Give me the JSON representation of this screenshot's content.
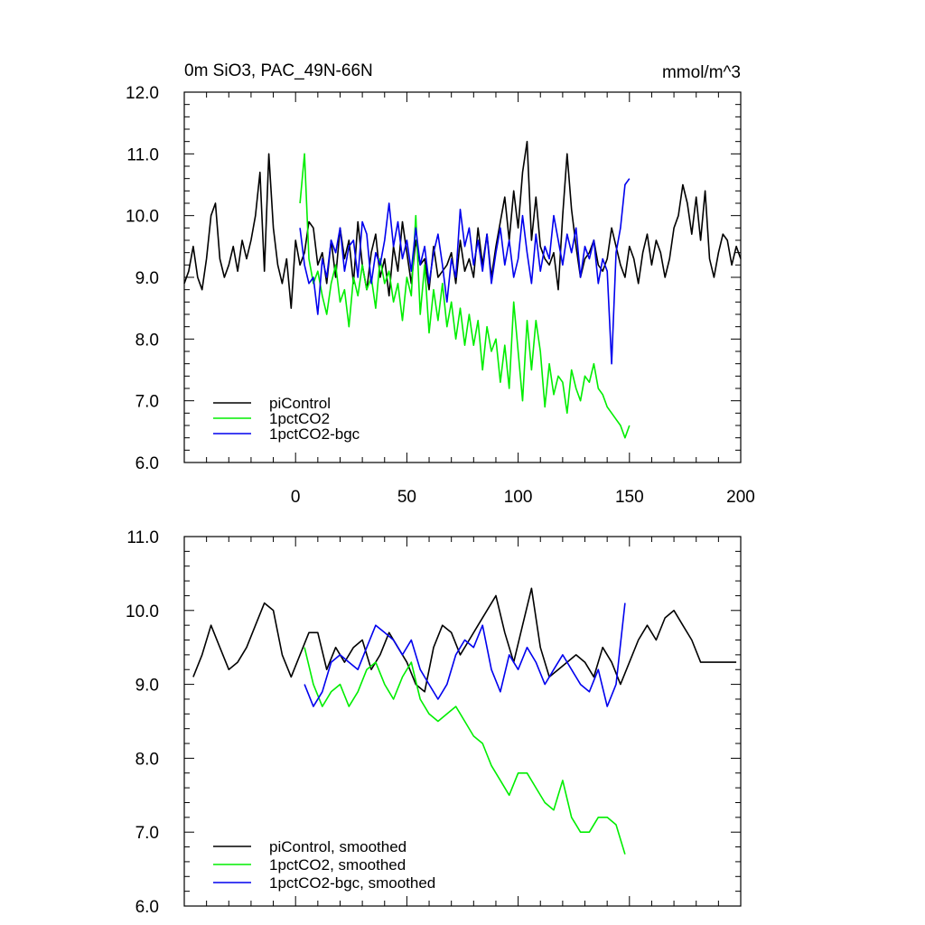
{
  "chart_data": [
    {
      "type": "line",
      "title": "0m SiO3, PAC_49N-66N",
      "units": "mmol/m^3",
      "xlim": [
        -50,
        200
      ],
      "ylim": [
        6.0,
        12.0
      ],
      "x_ticks": [
        0,
        50,
        100,
        150,
        200
      ],
      "x_tick_labels": [
        "0",
        "50",
        "100",
        "150",
        "200"
      ],
      "y_ticks": [
        6.0,
        7.0,
        8.0,
        9.0,
        10.0,
        11.0,
        12.0
      ],
      "y_tick_labels": [
        "6.0",
        "7.0",
        "8.0",
        "9.0",
        "10.0",
        "11.0",
        "12.0"
      ],
      "legend_position": "bottom-left",
      "series": [
        {
          "name": "piControl",
          "color": "#000000",
          "x": [
            -50,
            -48,
            -46,
            -44,
            -42,
            -40,
            -38,
            -36,
            -34,
            -32,
            -30,
            -28,
            -26,
            -24,
            -22,
            -20,
            -18,
            -16,
            -14,
            -12,
            -10,
            -8,
            -6,
            -4,
            -2,
            0,
            2,
            4,
            6,
            8,
            10,
            12,
            14,
            16,
            18,
            20,
            22,
            24,
            26,
            28,
            30,
            32,
            34,
            36,
            38,
            40,
            42,
            44,
            46,
            48,
            50,
            52,
            54,
            56,
            58,
            60,
            62,
            64,
            66,
            68,
            70,
            72,
            74,
            76,
            78,
            80,
            82,
            84,
            86,
            88,
            90,
            92,
            94,
            96,
            98,
            100,
            102,
            104,
            106,
            108,
            110,
            112,
            114,
            116,
            118,
            120,
            122,
            124,
            126,
            128,
            130,
            132,
            134,
            136,
            138,
            140,
            142,
            144,
            146,
            148,
            150,
            152,
            154,
            156,
            158,
            160,
            162,
            164,
            166,
            168,
            170,
            172,
            174,
            176,
            178,
            180,
            182,
            184,
            186,
            188,
            190,
            192,
            194,
            196,
            198,
            200
          ],
          "y": [
            8.9,
            9.1,
            9.5,
            9.0,
            8.8,
            9.3,
            10.0,
            10.2,
            9.3,
            9.0,
            9.2,
            9.5,
            9.1,
            9.6,
            9.3,
            9.6,
            10.0,
            10.7,
            9.1,
            11.0,
            9.8,
            9.2,
            8.9,
            9.3,
            8.5,
            9.6,
            9.2,
            9.4,
            9.9,
            9.8,
            9.2,
            9.4,
            8.9,
            9.6,
            9.0,
            9.8,
            9.3,
            9.6,
            8.9,
            9.9,
            9.2,
            8.8,
            9.4,
            9.7,
            9.0,
            9.3,
            8.7,
            9.5,
            9.1,
            9.9,
            9.4,
            8.9,
            9.6,
            9.2,
            9.3,
            8.8,
            9.5,
            9.0,
            9.1,
            9.2,
            9.4,
            8.9,
            9.6,
            9.1,
            9.3,
            9.0,
            9.8,
            9.2,
            9.7,
            9.0,
            9.5,
            9.9,
            10.3,
            9.6,
            10.4,
            9.8,
            10.7,
            11.2,
            9.6,
            10.3,
            9.5,
            9.3,
            9.2,
            9.4,
            8.8,
            10.0,
            11.0,
            10.1,
            9.5,
            9.0,
            9.3,
            9.4,
            9.6,
            9.2,
            9.1,
            9.3,
            9.8,
            9.5,
            9.2,
            9.0,
            9.5,
            9.3,
            8.9,
            9.4,
            9.7,
            9.2,
            9.6,
            9.4,
            9.0,
            9.3,
            9.8,
            10.0,
            10.5,
            10.2,
            9.7,
            10.3,
            9.6,
            10.4,
            9.3,
            9.0,
            9.4,
            9.7,
            9.6,
            9.2,
            9.5,
            9.3
          ]
        },
        {
          "name": "1pctCO2",
          "color": "#00ee00",
          "x": [
            2,
            4,
            6,
            8,
            10,
            12,
            14,
            16,
            18,
            20,
            22,
            24,
            26,
            28,
            30,
            32,
            34,
            36,
            38,
            40,
            42,
            44,
            46,
            48,
            50,
            52,
            54,
            56,
            58,
            60,
            62,
            64,
            66,
            68,
            70,
            72,
            74,
            76,
            78,
            80,
            82,
            84,
            86,
            88,
            90,
            92,
            94,
            96,
            98,
            100,
            102,
            104,
            106,
            108,
            110,
            112,
            114,
            116,
            118,
            120,
            122,
            124,
            126,
            128,
            130,
            132,
            134,
            136,
            138,
            140,
            142,
            144,
            146,
            148,
            150
          ],
          "y": [
            10.2,
            11.0,
            9.3,
            8.9,
            9.1,
            8.7,
            8.4,
            8.9,
            9.2,
            8.6,
            8.8,
            8.2,
            9.0,
            8.7,
            9.2,
            8.8,
            9.0,
            8.5,
            9.3,
            8.9,
            9.1,
            8.6,
            8.9,
            8.3,
            9.0,
            8.7,
            10.0,
            8.4,
            9.2,
            8.1,
            8.8,
            8.3,
            8.9,
            8.2,
            8.6,
            8.0,
            8.5,
            7.9,
            8.4,
            7.9,
            8.3,
            7.5,
            8.2,
            7.8,
            8.0,
            7.3,
            7.9,
            7.2,
            8.6,
            7.8,
            7.0,
            8.3,
            7.5,
            8.3,
            7.8,
            6.9,
            7.6,
            7.1,
            7.4,
            7.3,
            6.8,
            7.5,
            7.2,
            7.0,
            7.4,
            7.3,
            7.6,
            7.2,
            7.1,
            6.9,
            6.8,
            6.7,
            6.6,
            6.4,
            6.6
          ]
        },
        {
          "name": "1pctCO2-bgc",
          "color": "#0000ee",
          "x": [
            2,
            4,
            6,
            8,
            10,
            12,
            14,
            16,
            18,
            20,
            22,
            24,
            26,
            28,
            30,
            32,
            34,
            36,
            38,
            40,
            42,
            44,
            46,
            48,
            50,
            52,
            54,
            56,
            58,
            60,
            62,
            64,
            66,
            68,
            70,
            72,
            74,
            76,
            78,
            80,
            82,
            84,
            86,
            88,
            90,
            92,
            94,
            96,
            98,
            100,
            102,
            104,
            106,
            108,
            110,
            112,
            114,
            116,
            118,
            120,
            122,
            124,
            126,
            128,
            130,
            132,
            134,
            136,
            138,
            140,
            142,
            144,
            146,
            148,
            150
          ],
          "y": [
            9.8,
            9.2,
            8.9,
            9.0,
            8.4,
            9.3,
            9.0,
            9.6,
            9.4,
            9.8,
            9.1,
            9.5,
            9.6,
            9.0,
            9.9,
            9.7,
            8.9,
            9.4,
            9.2,
            9.6,
            10.2,
            9.5,
            9.9,
            9.3,
            9.6,
            9.1,
            9.8,
            9.2,
            9.5,
            8.9,
            9.4,
            9.7,
            9.2,
            8.6,
            9.3,
            9.0,
            10.1,
            9.5,
            9.8,
            9.2,
            9.6,
            9.1,
            9.7,
            8.9,
            9.4,
            9.8,
            9.2,
            9.6,
            9.0,
            9.3,
            10.0,
            9.4,
            8.9,
            9.7,
            9.1,
            9.5,
            9.3,
            10.0,
            9.6,
            9.2,
            9.7,
            9.4,
            9.8,
            9.0,
            9.5,
            9.3,
            9.6,
            8.9,
            9.3,
            9.1,
            7.6,
            9.4,
            9.8,
            10.5,
            10.6
          ]
        }
      ]
    },
    {
      "type": "line",
      "xlim": [
        -50,
        200
      ],
      "ylim": [
        6.0,
        11.0
      ],
      "x_ticks": [
        0,
        50,
        100,
        150,
        200
      ],
      "y_ticks": [
        6.0,
        7.0,
        8.0,
        9.0,
        10.0,
        11.0
      ],
      "y_tick_labels": [
        "6.0",
        "7.0",
        "8.0",
        "9.0",
        "10.0",
        "11.0"
      ],
      "legend_position": "bottom-left",
      "series": [
        {
          "name": "piControl, smoothed",
          "color": "#000000",
          "x": [
            -46,
            -42,
            -38,
            -34,
            -30,
            -26,
            -22,
            -18,
            -14,
            -10,
            -6,
            -2,
            2,
            6,
            10,
            14,
            18,
            22,
            26,
            30,
            34,
            38,
            42,
            46,
            50,
            54,
            58,
            62,
            66,
            70,
            74,
            78,
            82,
            86,
            90,
            94,
            98,
            102,
            106,
            110,
            114,
            118,
            122,
            126,
            130,
            134,
            138,
            142,
            146,
            150,
            154,
            158,
            162,
            166,
            170,
            174,
            178,
            182,
            186,
            190,
            194,
            198
          ],
          "y": [
            9.1,
            9.4,
            9.8,
            9.5,
            9.2,
            9.3,
            9.5,
            9.8,
            10.1,
            10.0,
            9.4,
            9.1,
            9.4,
            9.7,
            9.7,
            9.2,
            9.5,
            9.3,
            9.5,
            9.6,
            9.2,
            9.4,
            9.7,
            9.5,
            9.3,
            9.0,
            8.9,
            9.5,
            9.8,
            9.7,
            9.4,
            9.6,
            9.8,
            10.0,
            10.2,
            9.7,
            9.3,
            9.8,
            10.3,
            9.5,
            9.1,
            9.2,
            9.3,
            9.4,
            9.3,
            9.1,
            9.5,
            9.3,
            9.0,
            9.3,
            9.6,
            9.8,
            9.6,
            9.9,
            10.0,
            9.8,
            9.6,
            9.3,
            9.3,
            9.3,
            9.3,
            9.3
          ]
        },
        {
          "name": "1pctCO2, smoothed",
          "color": "#00ee00",
          "x": [
            4,
            8,
            12,
            16,
            20,
            24,
            28,
            32,
            36,
            40,
            44,
            48,
            52,
            56,
            60,
            64,
            68,
            72,
            76,
            80,
            84,
            88,
            92,
            96,
            100,
            104,
            108,
            112,
            116,
            120,
            124,
            128,
            132,
            136,
            140,
            144,
            148
          ],
          "y": [
            9.5,
            9.0,
            8.7,
            8.9,
            9.0,
            8.7,
            8.9,
            9.2,
            9.3,
            9.0,
            8.8,
            9.1,
            9.3,
            8.8,
            8.6,
            8.5,
            8.6,
            8.7,
            8.5,
            8.3,
            8.2,
            7.9,
            7.7,
            7.5,
            7.8,
            7.8,
            7.6,
            7.4,
            7.3,
            7.7,
            7.2,
            7.0,
            7.0,
            7.2,
            7.2,
            7.1,
            6.7
          ]
        },
        {
          "name": "1pctCO2-bgc, smoothed",
          "color": "#0000ee",
          "x": [
            4,
            8,
            12,
            16,
            20,
            24,
            28,
            32,
            36,
            40,
            44,
            48,
            52,
            56,
            60,
            64,
            68,
            72,
            76,
            80,
            84,
            88,
            92,
            96,
            100,
            104,
            108,
            112,
            116,
            120,
            124,
            128,
            132,
            136,
            140,
            144,
            148
          ],
          "y": [
            9.0,
            8.7,
            8.9,
            9.3,
            9.4,
            9.3,
            9.2,
            9.5,
            9.8,
            9.7,
            9.6,
            9.4,
            9.6,
            9.2,
            9.0,
            8.8,
            9.0,
            9.4,
            9.6,
            9.5,
            9.8,
            9.2,
            8.9,
            9.4,
            9.2,
            9.5,
            9.3,
            9.0,
            9.2,
            9.4,
            9.2,
            9.0,
            8.9,
            9.2,
            8.7,
            9.0,
            10.1
          ]
        }
      ]
    }
  ]
}
